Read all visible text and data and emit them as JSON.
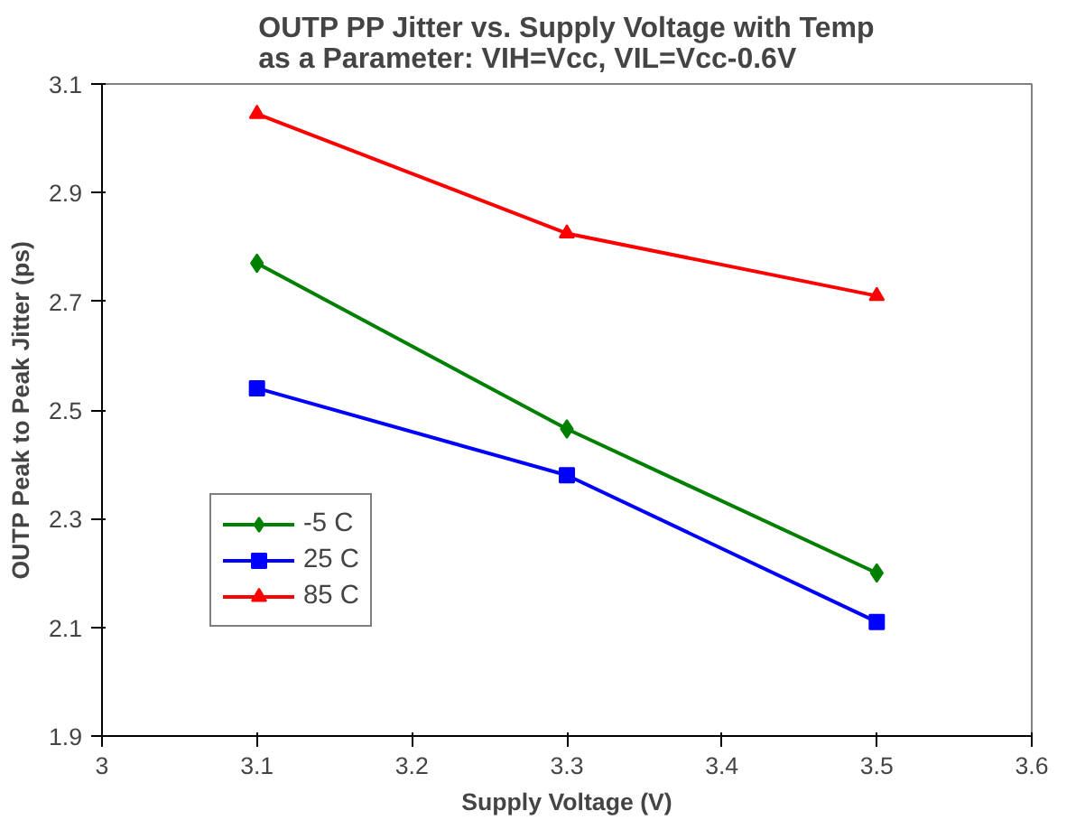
{
  "chart_data": {
    "type": "line",
    "title": "OUTP PP Jitter vs. Supply Voltage with Temp as a Parameter: VIH=Vcc, VIL=Vcc-0.6V",
    "xlabel": "Supply Voltage (V)",
    "ylabel": "OUTP Peak to Peak Jitter (ps)",
    "x": [
      3.1,
      3.3,
      3.5
    ],
    "series": [
      {
        "name": "-5 C",
        "color": "#008000",
        "marker": "diamond",
        "values": [
          2.77,
          2.465,
          2.2
        ]
      },
      {
        "name": "25 C",
        "color": "#0000ff",
        "marker": "square",
        "values": [
          2.54,
          2.38,
          2.11
        ]
      },
      {
        "name": "85 C",
        "color": "#ff0000",
        "marker": "triangle",
        "values": [
          3.045,
          2.825,
          2.71
        ]
      }
    ],
    "xlim": [
      3,
      3.6
    ],
    "xticks": [
      3,
      3.1,
      3.2,
      3.3,
      3.4,
      3.5,
      3.6
    ],
    "ylim": [
      1.9,
      3.1
    ],
    "yticks": [
      1.9,
      2.1,
      2.3,
      2.5,
      2.7,
      2.9,
      3.1
    ],
    "grid": false,
    "legend": "bottom left",
    "line_style": "solid"
  }
}
